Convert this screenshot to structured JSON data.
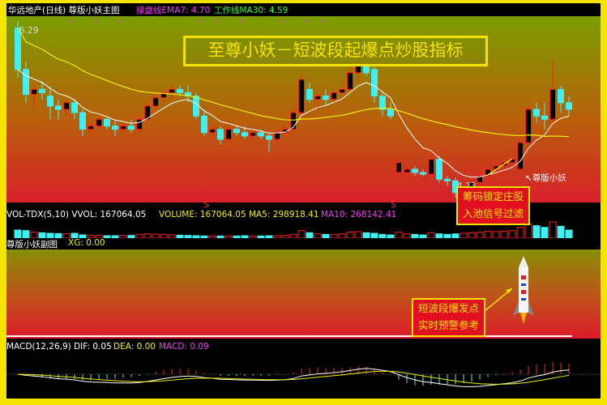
{
  "header": {
    "title": "华远地产(日线) 尊版小妖主图",
    "ema_label": "操盘线EMA7: 4.70",
    "ma_label": "工作线MA30: 4.59"
  },
  "main": {
    "banner": "至尊小妖－短波段起爆点炒股指标",
    "high_label": "5.29",
    "low_label": "4.23",
    "signal_label": "尊版小妖",
    "box_line1": "筹码锁定庄股",
    "box_line2": "入池信号过滤"
  },
  "vol": {
    "label": "VOL-TDX(5,10)",
    "vvol": "VVOL: 167064.05",
    "volume": "VOLUME: 167064.05",
    "ma5": "MA5: 298918.41",
    "ma10": "MA10: 268142.41",
    "marker": "S"
  },
  "sub": {
    "label": "尊版小妖副图",
    "xg": "XG: 0.00",
    "box_line1": "短波段爆发点",
    "box_line2": "实时预警参考"
  },
  "macd": {
    "label": "MACD(12,26,9)",
    "dif": "DIF: 0.05",
    "dea": "DEA: 0.00",
    "macd": "MACD: 0.09"
  },
  "colors": {
    "up": "#ff2020",
    "down": "#40f0f0",
    "ema": "#ffffff",
    "ma30": "#f0f000",
    "accent": "#f5e400"
  },
  "chart_data": {
    "type": "candlestick",
    "ohlc": [
      [
        5.25,
        5.29,
        4.95,
        5.0
      ],
      [
        5.0,
        5.05,
        4.8,
        4.85
      ],
      [
        4.85,
        4.92,
        4.78,
        4.88
      ],
      [
        4.88,
        4.93,
        4.82,
        4.86
      ],
      [
        4.84,
        4.9,
        4.7,
        4.78
      ],
      [
        4.78,
        4.82,
        4.7,
        4.76
      ],
      [
        4.76,
        4.82,
        4.72,
        4.8
      ],
      [
        4.8,
        4.82,
        4.7,
        4.74
      ],
      [
        4.74,
        4.76,
        4.6,
        4.64
      ],
      [
        4.64,
        4.68,
        4.62,
        4.66
      ],
      [
        4.66,
        4.72,
        4.64,
        4.7
      ],
      [
        4.7,
        4.72,
        4.64,
        4.66
      ],
      [
        4.66,
        4.7,
        4.6,
        4.64
      ],
      [
        4.64,
        4.68,
        4.62,
        4.66
      ],
      [
        4.66,
        4.7,
        4.62,
        4.64
      ],
      [
        4.64,
        4.72,
        4.62,
        4.7
      ],
      [
        4.7,
        4.8,
        4.68,
        4.78
      ],
      [
        4.78,
        4.86,
        4.76,
        4.83
      ],
      [
        4.83,
        4.88,
        4.8,
        4.86
      ],
      [
        4.86,
        4.9,
        4.82,
        4.88
      ],
      [
        4.88,
        4.9,
        4.84,
        4.86
      ],
      [
        4.86,
        4.9,
        4.8,
        4.84
      ],
      [
        4.84,
        4.86,
        4.7,
        4.72
      ],
      [
        4.72,
        4.76,
        4.6,
        4.62
      ],
      [
        4.62,
        4.66,
        4.58,
        4.64
      ],
      [
        4.64,
        4.66,
        4.55,
        4.58
      ],
      [
        4.58,
        4.66,
        4.56,
        4.64
      ],
      [
        4.64,
        4.66,
        4.6,
        4.62
      ],
      [
        4.62,
        4.66,
        4.58,
        4.6
      ],
      [
        4.6,
        4.64,
        4.58,
        4.62
      ],
      [
        4.62,
        4.64,
        4.58,
        4.6
      ],
      [
        4.6,
        4.62,
        4.5,
        4.58
      ],
      [
        4.58,
        4.64,
        4.56,
        4.62
      ],
      [
        4.62,
        4.66,
        4.6,
        4.64
      ],
      [
        4.64,
        4.76,
        4.62,
        4.74
      ],
      [
        4.74,
        4.98,
        4.72,
        4.94
      ],
      [
        4.88,
        4.92,
        4.8,
        4.82
      ],
      [
        4.82,
        4.86,
        4.76,
        4.84
      ],
      [
        4.84,
        4.88,
        4.78,
        4.82
      ],
      [
        4.82,
        4.88,
        4.8,
        4.86
      ],
      [
        4.86,
        4.92,
        4.84,
        4.88
      ],
      [
        4.88,
        5.02,
        4.86,
        4.98
      ],
      [
        4.98,
        5.04,
        4.92,
        5.02
      ],
      [
        5.02,
        5.04,
        4.96,
        4.98
      ],
      [
        5.0,
        5.02,
        4.8,
        4.84
      ],
      [
        4.84,
        4.86,
        4.72,
        4.76
      ],
      [
        4.76,
        4.8,
        4.7,
        4.72
      ],
      [
        4.38,
        4.46,
        4.34,
        4.44
      ],
      [
        4.38,
        4.42,
        4.36,
        4.4
      ],
      [
        4.4,
        4.42,
        4.36,
        4.38
      ],
      [
        4.38,
        4.4,
        4.36,
        4.37
      ],
      [
        4.37,
        4.48,
        4.34,
        4.46
      ],
      [
        4.46,
        4.48,
        4.32,
        4.34
      ],
      [
        4.34,
        4.36,
        4.3,
        4.33
      ],
      [
        4.33,
        4.35,
        4.23,
        4.26
      ],
      [
        4.26,
        4.3,
        4.24,
        4.28
      ],
      [
        4.28,
        4.34,
        4.27,
        4.32
      ],
      [
        4.32,
        4.38,
        4.3,
        4.36
      ],
      [
        4.36,
        4.42,
        4.34,
        4.4
      ],
      [
        4.4,
        4.45,
        4.38,
        4.42
      ],
      [
        4.42,
        4.46,
        4.4,
        4.44
      ],
      [
        4.44,
        4.5,
        4.4,
        4.46
      ],
      [
        4.4,
        4.58,
        4.4,
        4.56
      ],
      [
        4.56,
        4.78,
        4.55,
        4.76
      ],
      [
        4.76,
        4.8,
        4.68,
        4.72
      ],
      [
        4.72,
        4.8,
        4.64,
        4.7
      ],
      [
        4.7,
        5.06,
        4.68,
        4.88
      ],
      [
        4.88,
        4.9,
        4.74,
        4.8
      ],
      [
        4.8,
        4.84,
        4.72,
        4.76
      ]
    ],
    "volume": [
      30,
      28,
      22,
      20,
      18,
      17,
      16,
      18,
      12,
      10,
      10,
      9,
      9,
      10,
      10,
      14,
      16,
      15,
      14,
      12,
      11,
      10,
      9,
      8,
      8,
      8,
      8,
      8,
      9,
      8,
      8,
      9,
      9,
      10,
      14,
      28,
      20,
      16,
      14,
      14,
      16,
      22,
      24,
      20,
      18,
      14,
      12,
      22,
      16,
      14,
      12,
      20,
      16,
      14,
      16,
      18,
      20,
      22,
      26,
      24,
      26,
      28,
      40,
      52,
      46,
      40,
      60,
      44,
      30
    ],
    "ylim": [
      4.2,
      5.32
    ]
  }
}
